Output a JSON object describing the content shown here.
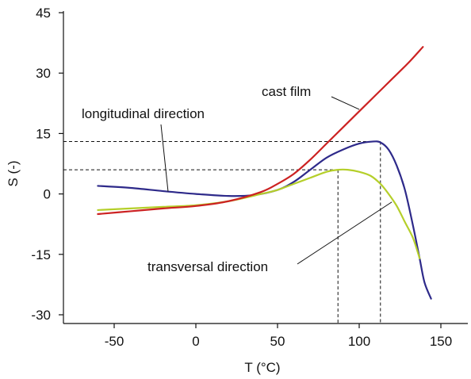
{
  "chart_data": {
    "type": "line",
    "xlabel": "T (°C)",
    "ylabel": "S (-)",
    "xlim": [
      -80,
      160
    ],
    "ylim": [
      -33,
      45
    ],
    "x_ticks": [
      -50,
      0,
      50,
      100,
      150
    ],
    "y_ticks": [
      -30,
      -15,
      0,
      15,
      30,
      45
    ],
    "grid": false,
    "series": [
      {
        "key": "longitudinal",
        "color": "#2e2a8a",
        "x": [
          -60,
          -40,
          -20,
          0,
          20,
          35,
          50,
          60,
          70,
          80,
          90,
          100,
          108,
          113,
          118,
          123,
          128,
          133,
          137,
          140,
          144
        ],
        "y": [
          2,
          1.5,
          0.7,
          0,
          -0.5,
          -0.3,
          1,
          3,
          6,
          9,
          11,
          12.5,
          13,
          12.8,
          11,
          7,
          1,
          -8,
          -16,
          -22,
          -26
        ]
      },
      {
        "key": "transversal",
        "color": "#b5cf2a",
        "x": [
          -60,
          -40,
          -20,
          0,
          20,
          40,
          50,
          60,
          70,
          80,
          87,
          93,
          100,
          107,
          113,
          118,
          123,
          128,
          133,
          137
        ],
        "y": [
          -4,
          -3.6,
          -3.2,
          -2.8,
          -1.8,
          0,
          1,
          2.5,
          4,
          5.5,
          6,
          6,
          5.5,
          4.5,
          2.5,
          0,
          -3,
          -7,
          -11,
          -16
        ]
      },
      {
        "key": "cast",
        "color": "#cc2222",
        "x": [
          -60,
          -40,
          -20,
          0,
          20,
          40,
          50,
          60,
          70,
          80,
          90,
          100,
          110,
          120,
          130,
          139
        ],
        "y": [
          -5,
          -4.3,
          -3.6,
          -3,
          -1.8,
          0.5,
          2.5,
          5,
          8.5,
          12.5,
          16.5,
          20.5,
          24.5,
          28.5,
          32.5,
          36.5
        ]
      }
    ],
    "reference_lines": [
      {
        "key": "ref-13",
        "x": 113,
        "y": 13
      },
      {
        "key": "ref-6",
        "x": 87,
        "y": 6
      }
    ],
    "annotations": {
      "cast": {
        "text": "cast film",
        "point": [
          100,
          21
        ]
      },
      "longitudinal": {
        "text": "longitudinal direction",
        "point": [
          -17,
          0.6
        ]
      },
      "transversal": {
        "text": "transversal direction",
        "point": [
          120,
          -2
        ]
      }
    }
  }
}
